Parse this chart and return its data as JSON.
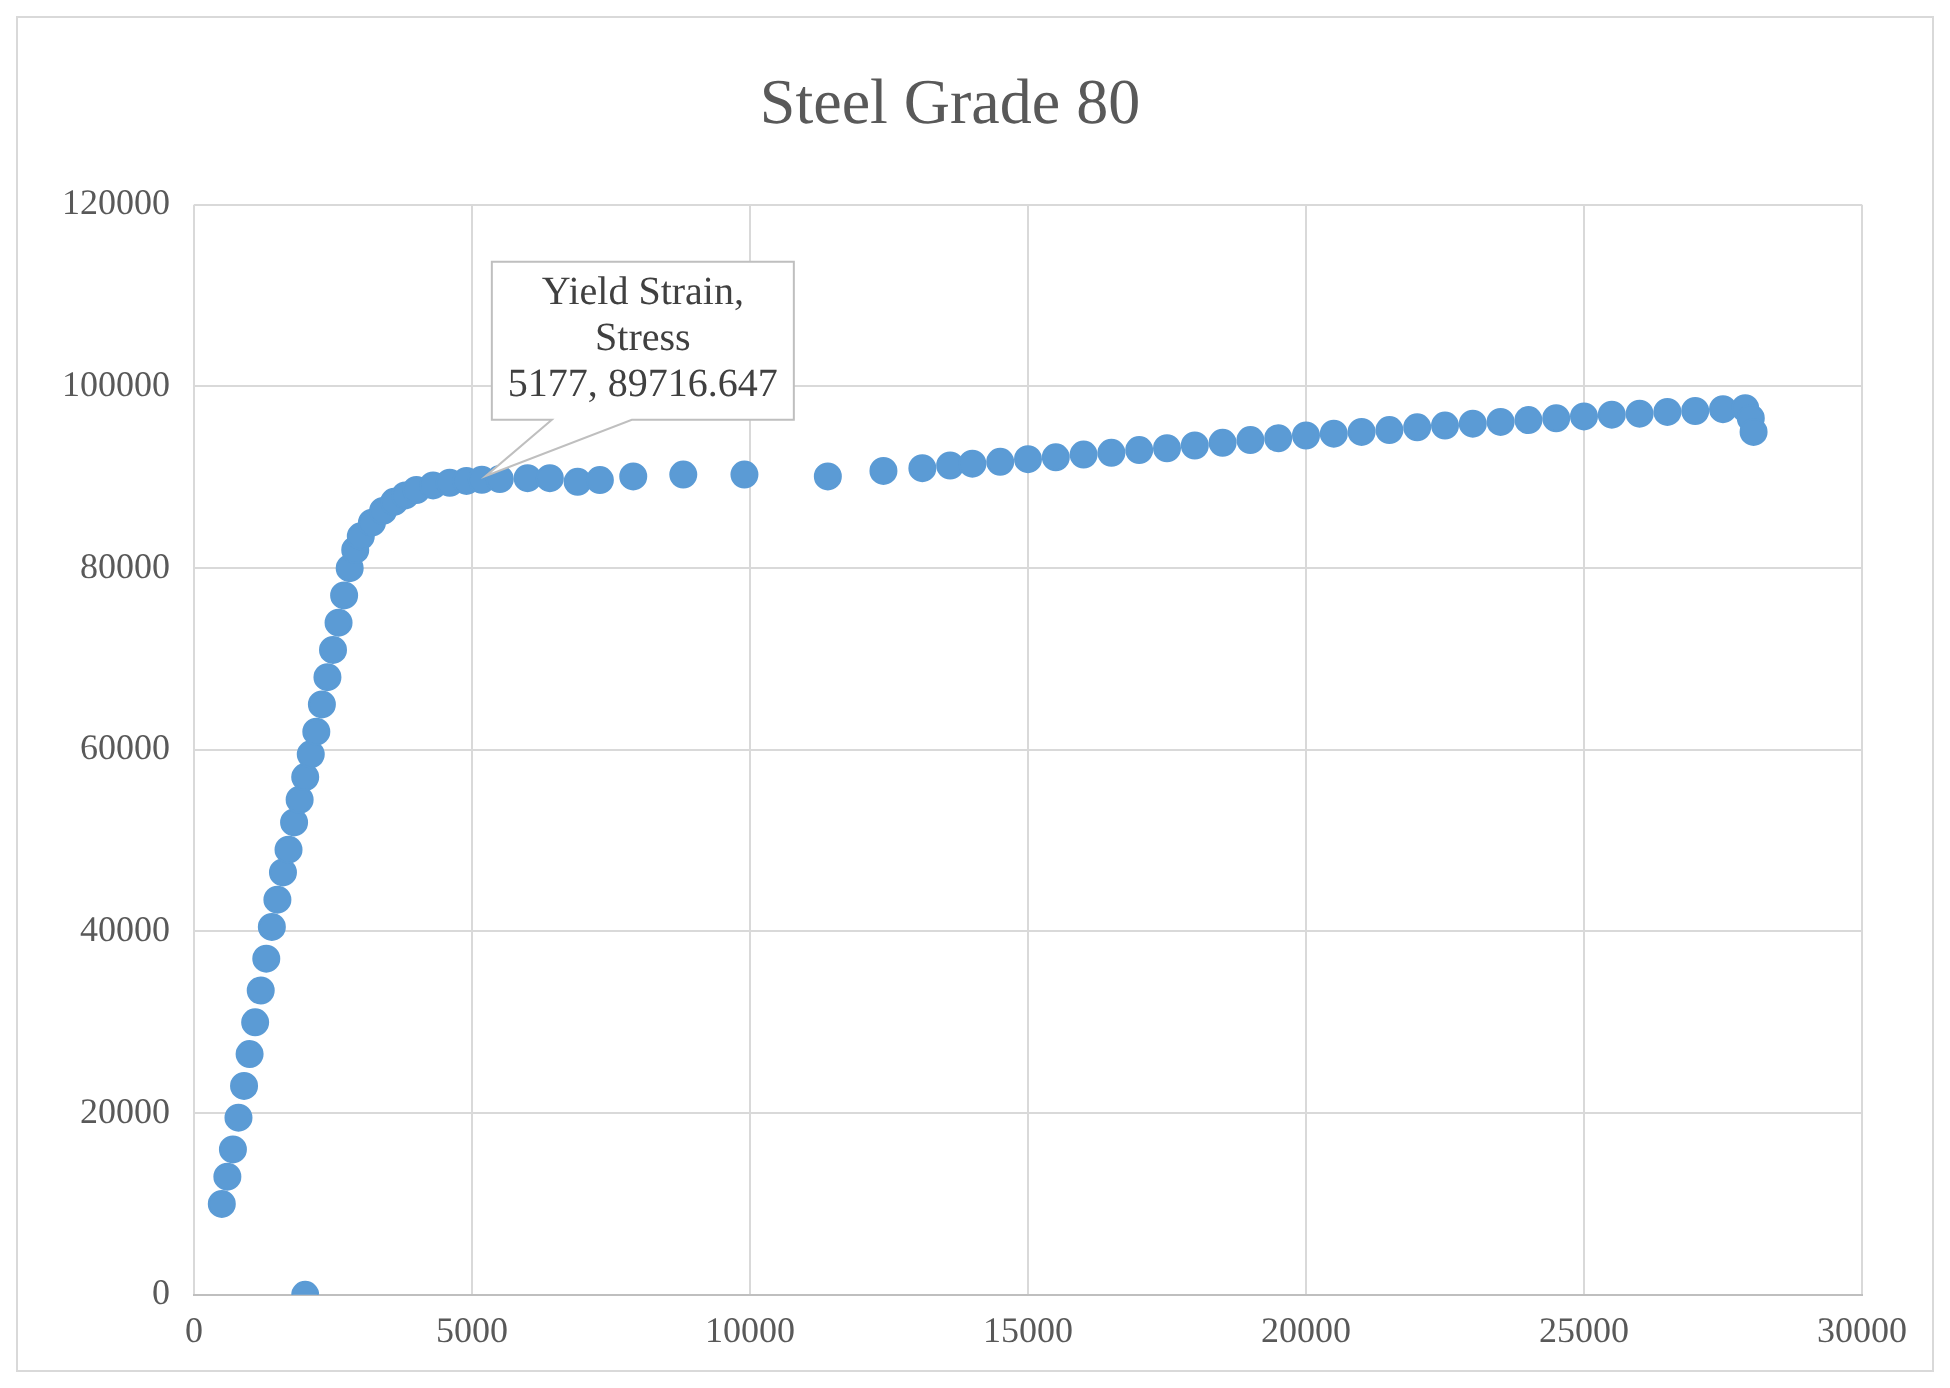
{
  "chart_data": {
    "type": "scatter",
    "title": "Steel Grade 80",
    "series": [
      {
        "color": "#5b9bd5",
        "x": [
          500,
          600,
          700,
          800,
          900,
          1000,
          1100,
          1200,
          1300,
          1400,
          1500,
          1600,
          1700,
          1800,
          1900,
          2000,
          2100,
          2200,
          2300,
          2400,
          2500,
          2600,
          2700,
          2800,
          2900,
          3000,
          3200,
          3400,
          3600,
          3800,
          4000,
          4300,
          4600,
          4900,
          5177,
          5500,
          6000,
          6400,
          6900,
          7300,
          7900,
          8800,
          9900,
          11400,
          12400,
          13100,
          13600,
          14000,
          14500,
          15000,
          15500,
          16000,
          16500,
          17000,
          17500,
          18000,
          18500,
          19000,
          19500,
          20000,
          20500,
          21000,
          21500,
          22000,
          22500,
          23000,
          23500,
          24000,
          24500,
          25000,
          25500,
          26000,
          26500,
          27000,
          27500,
          27900,
          28000,
          28050,
          2000
        ],
        "values": [
          10000,
          13000,
          16000,
          19500,
          23000,
          26500,
          30000,
          33500,
          37000,
          40500,
          43500,
          46500,
          49000,
          52000,
          54500,
          57000,
          59500,
          62000,
          65000,
          68000,
          71000,
          74000,
          77000,
          80000,
          82000,
          83500,
          85000,
          86300,
          87300,
          88000,
          88600,
          89100,
          89400,
          89600,
          89716.647,
          89800,
          89900,
          89900,
          89500,
          89700,
          90100,
          90300,
          90300,
          90100,
          90700,
          91000,
          91300,
          91500,
          91700,
          92000,
          92200,
          92500,
          92700,
          93000,
          93200,
          93500,
          93800,
          94100,
          94300,
          94600,
          94800,
          95000,
          95200,
          95500,
          95700,
          95900,
          96100,
          96300,
          96500,
          96700,
          96900,
          97000,
          97200,
          97300,
          97500,
          97600,
          96500,
          95000,
          0
        ]
      }
    ],
    "xlim": [
      0,
      30000
    ],
    "xticks": [
      0,
      5000,
      10000,
      15000,
      20000,
      25000,
      30000
    ],
    "ylim": [
      0,
      120000
    ],
    "yticks": [
      0,
      20000,
      40000,
      60000,
      80000,
      100000,
      120000
    ],
    "grid": true,
    "legend": false,
    "marker": "circle",
    "annotations": [
      {
        "text": "Yield Strain,\nStress\n5177, 89716.647",
        "x": 5177,
        "y": 89716.647
      }
    ]
  }
}
